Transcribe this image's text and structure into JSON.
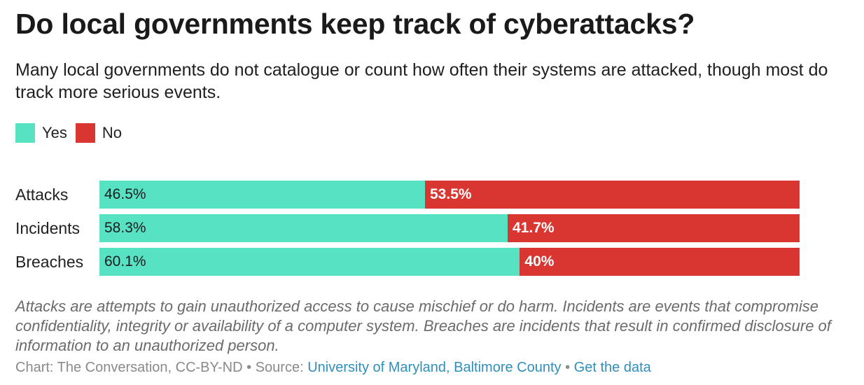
{
  "title": "Do local governments keep track of cyberattacks?",
  "subtitle": "Many local governments do not catalogue or count how often their systems are attacked, though most do track more serious events.",
  "legend": [
    {
      "label": "Yes",
      "color": "#57e2c4"
    },
    {
      "label": "No",
      "color": "#d93632"
    }
  ],
  "chart_data": {
    "type": "bar",
    "orientation": "horizontal",
    "stacked": true,
    "normalized_percent": true,
    "legend_position": "top-left",
    "categories": [
      "Attacks",
      "Incidents",
      "Breaches"
    ],
    "series": [
      {
        "name": "Yes",
        "color": "#57e2c4",
        "values": [
          46.5,
          58.3,
          60.1
        ],
        "labels": [
          "46.5%",
          "58.3%",
          "60.1%"
        ]
      },
      {
        "name": "No",
        "color": "#d93632",
        "values": [
          53.5,
          41.7,
          40
        ],
        "labels": [
          "53.5%",
          "41.7%",
          "40%"
        ]
      }
    ],
    "xlim": [
      0,
      100
    ],
    "grid": false
  },
  "note": "Attacks are attempts to gain unauthorized access to cause mischief or do harm. Incidents are events that compromise confidentiality, integrity or availability of a computer system. Breaches are incidents that result in confirmed disclosure of information to an unauthorized person.",
  "footer": {
    "credit": "Chart: The Conversation, CC-BY-ND",
    "separator": " • ",
    "source_prefix": "Source: ",
    "source_link": "University of Maryland, Baltimore County",
    "data_link": "Get the data"
  }
}
